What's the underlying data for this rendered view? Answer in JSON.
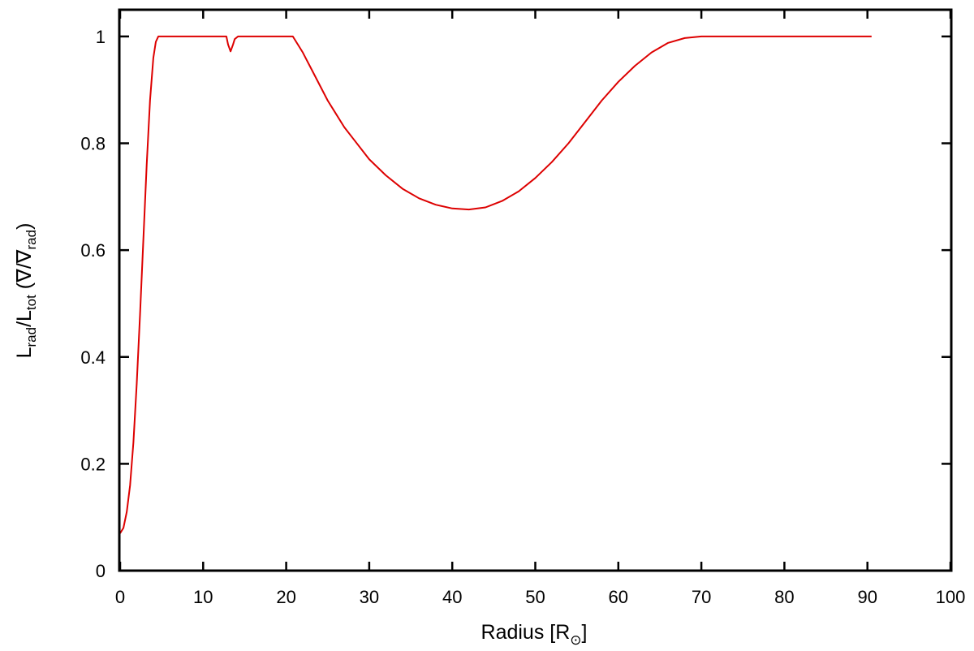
{
  "chart_data": {
    "type": "line",
    "title": "",
    "xlabel": "Radius [R☉]",
    "xlabel_main": "Radius [R",
    "xlabel_sub": "⊙",
    "xlabel_close": "]",
    "ylabel": "L_rad/L_tot (∇/∇_rad)",
    "ylabel_parts": {
      "l1": "L",
      "s1": "rad",
      "slash": "/L",
      "s2": "tot",
      "paren": " (∇/∇",
      "s3": "rad",
      "close": ")"
    },
    "xlim": [
      0,
      100
    ],
    "ylim": [
      0,
      1.05
    ],
    "xticks": [
      0,
      10,
      20,
      30,
      40,
      50,
      60,
      70,
      80,
      90,
      100
    ],
    "xtick_labels": [
      "0",
      "10",
      "20",
      "30",
      "40",
      "50",
      "60",
      "70",
      "80",
      "90",
      "100"
    ],
    "yticks": [
      0,
      0.2,
      0.4,
      0.6,
      0.8,
      1.0
    ],
    "ytick_labels": [
      "0",
      "0.2",
      "0.4",
      "0.6",
      "0.8",
      "1"
    ],
    "grid": false,
    "line_color": "#dd0000",
    "series": [
      {
        "x": [
          0.0,
          0.4,
          0.8,
          1.2,
          1.6,
          2.0,
          2.4,
          2.8,
          3.2,
          3.6,
          4.0,
          4.3,
          4.6,
          8.0,
          12.8,
          13.0,
          13.3,
          13.6,
          13.8,
          14.2,
          16.0,
          20.0,
          20.8,
          22.0,
          23.0,
          24.0,
          25.0,
          26.0,
          27.0,
          28.0,
          30.0,
          32.0,
          34.0,
          36.0,
          38.0,
          40.0,
          42.0,
          44.0,
          46.0,
          48.0,
          50.0,
          52.0,
          54.0,
          56.0,
          58.0,
          60.0,
          62.0,
          64.0,
          66.0,
          68.0,
          70.0,
          72.0,
          80.0,
          90.5
        ],
        "y": [
          0.07,
          0.08,
          0.11,
          0.16,
          0.24,
          0.35,
          0.48,
          0.62,
          0.76,
          0.88,
          0.96,
          0.99,
          1.0,
          1.0,
          1.0,
          0.985,
          0.972,
          0.985,
          0.995,
          1.0,
          1.0,
          1.0,
          1.0,
          0.97,
          0.94,
          0.91,
          0.88,
          0.855,
          0.83,
          0.81,
          0.77,
          0.74,
          0.715,
          0.697,
          0.685,
          0.678,
          0.676,
          0.68,
          0.692,
          0.71,
          0.735,
          0.765,
          0.8,
          0.84,
          0.88,
          0.915,
          0.945,
          0.97,
          0.988,
          0.997,
          1.0,
          1.0,
          1.0,
          1.0
        ]
      }
    ]
  }
}
